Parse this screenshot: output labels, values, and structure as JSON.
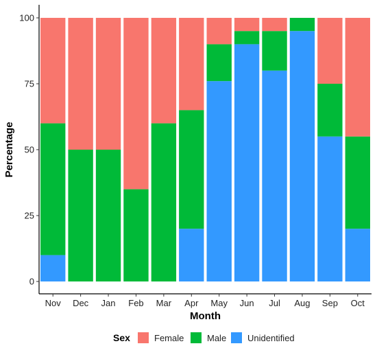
{
  "chart_data": {
    "type": "bar",
    "stacked": true,
    "categories": [
      "Nov",
      "Dec",
      "Jan",
      "Feb",
      "Mar",
      "Apr",
      "May",
      "Jun",
      "Jul",
      "Aug",
      "Sep",
      "Oct"
    ],
    "series": [
      {
        "name": "Unidentified",
        "color": "#3399FF",
        "values": [
          10,
          0,
          0,
          0,
          0,
          20,
          76,
          90,
          80,
          95,
          55,
          20
        ]
      },
      {
        "name": "Male",
        "color": "#00BA38",
        "values": [
          50,
          50,
          50,
          35,
          60,
          45,
          14,
          5,
          15,
          5,
          20,
          35
        ]
      },
      {
        "name": "Female",
        "color": "#F8766D",
        "values": [
          40,
          50,
          50,
          65,
          40,
          35,
          10,
          5,
          5,
          0,
          25,
          45
        ]
      }
    ],
    "xlabel": "Month",
    "ylabel": "Percentage",
    "ylim": [
      0,
      100
    ],
    "yticks": [
      0,
      25,
      50,
      75,
      100
    ],
    "grid": false,
    "legend": {
      "title": "Sex",
      "placement": "bottom",
      "order": [
        "Female",
        "Male",
        "Unidentified"
      ]
    }
  }
}
